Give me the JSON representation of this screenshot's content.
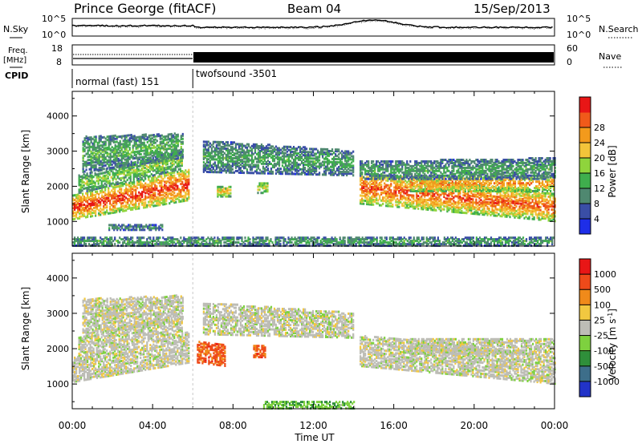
{
  "header": {
    "station": "Prince George (fitACF)",
    "beam": "Beam 04",
    "date": "15/Sep/2013"
  },
  "noise_panel": {
    "left_label": "N.Sky",
    "right_label": "N.Search",
    "left_ticks": [
      "10^5",
      "10^0"
    ],
    "right_ticks": [
      "10^5",
      "10^0"
    ]
  },
  "freq_panel": {
    "left_label_1": "Freq.",
    "left_label_2": "[MHz]",
    "right_label": "Nave",
    "left_ticks": [
      "18",
      "8"
    ],
    "right_ticks": [
      "60",
      "0"
    ]
  },
  "cpid": {
    "label": "CPID",
    "modes": [
      {
        "name": "normal (fast) 151",
        "start_h": 0,
        "end_h": 6
      },
      {
        "name": "twofsound -3501",
        "start_h": 6,
        "end_h": 24
      }
    ]
  },
  "x_axis": {
    "label": "Time UT",
    "ticks": [
      "00:00",
      "04:00",
      "08:00",
      "12:00",
      "16:00",
      "20:00",
      "00:00"
    ]
  },
  "chart_data": [
    {
      "type": "heatmap",
      "title": "",
      "xlabel": "Time UT",
      "ylabel": "Slant Range [km]",
      "xlim": [
        0,
        24
      ],
      "ylim": [
        300,
        4700
      ],
      "yticks": [
        "1000",
        "2000",
        "3000",
        "4000"
      ],
      "colorbar_label": "Power [dB]",
      "colorbar_ticks": [
        "4",
        "8",
        "12",
        "16",
        "20",
        "24",
        "28"
      ],
      "colorbar_colors": [
        "#1e2ee8",
        "#3a4ea6",
        "#4f8870",
        "#3fae4d",
        "#8fd43c",
        "#f3c43a",
        "#f39a1c",
        "#f05a1a",
        "#e81616"
      ],
      "regions": [
        {
          "t0": 0.0,
          "t1": 5.8,
          "r0a": 1050,
          "r1a": 1750,
          "r0b": 1600,
          "r1b": 2500,
          "level": 0.85
        },
        {
          "t0": 0.3,
          "t1": 5.5,
          "r0a": 1800,
          "r1a": 2300,
          "r0b": 2500,
          "r1b": 3000,
          "level": 0.45
        },
        {
          "t0": 0.5,
          "t1": 5.5,
          "r0a": 2400,
          "r1a": 3400,
          "r0b": 2800,
          "r1b": 3500,
          "level": 0.35
        },
        {
          "t0": 1.8,
          "t1": 4.5,
          "r0a": 750,
          "r1a": 900,
          "r0b": 750,
          "r1b": 900,
          "level": 0.25
        },
        {
          "t0": 6.5,
          "t1": 14.0,
          "r0a": 2400,
          "r1a": 3300,
          "r0b": 2300,
          "r1b": 3000,
          "level": 0.3
        },
        {
          "t0": 7.2,
          "t1": 7.9,
          "r0a": 1700,
          "r1a": 2000,
          "r0b": 1700,
          "r1b": 2000,
          "level": 0.6
        },
        {
          "t0": 9.2,
          "t1": 9.7,
          "r0a": 1800,
          "r1a": 2100,
          "r0b": 1800,
          "r1b": 2100,
          "level": 0.55
        },
        {
          "t0": 14.3,
          "t1": 24.0,
          "r0a": 1500,
          "r1a": 2400,
          "r0b": 1000,
          "r1b": 1800,
          "level": 0.8
        },
        {
          "t0": 16.8,
          "t1": 24.0,
          "r0a": 1850,
          "r1a": 2300,
          "r0b": 1850,
          "r1b": 2300,
          "level": 0.7
        },
        {
          "t0": 14.3,
          "t1": 24.0,
          "r0a": 2200,
          "r1a": 2700,
          "r0b": 2200,
          "r1b": 2800,
          "level": 0.3
        },
        {
          "t0": 0.0,
          "t1": 24.0,
          "r0a": 300,
          "r1a": 550,
          "r0b": 300,
          "r1b": 550,
          "level": 0.3
        }
      ]
    },
    {
      "type": "heatmap",
      "title": "",
      "xlabel": "Time UT",
      "ylabel": "Slant Range [km]",
      "xlim": [
        0,
        24
      ],
      "ylim": [
        300,
        4700
      ],
      "yticks": [
        "1000",
        "2000",
        "3000",
        "4000"
      ],
      "colorbar_label": "Velocity [m s^-1]",
      "colorbar_ticks": [
        "1000",
        "500",
        "100",
        "25",
        "-25",
        "-100",
        "-500",
        "-1000"
      ],
      "colorbar_colors": [
        "#2233c8",
        "#3d6e8a",
        "#2f8f3a",
        "#7ed13f",
        "#bdbdb6",
        "#f2c840",
        "#f08a1a",
        "#ee4a1a",
        "#e81616"
      ],
      "regions": [
        {
          "t0": 0.0,
          "t1": 5.8,
          "r0a": 1050,
          "r1a": 1750,
          "r0b": 1600,
          "r1b": 2500,
          "level": 0.5
        },
        {
          "t0": 0.3,
          "t1": 5.5,
          "r0a": 1800,
          "r1a": 2300,
          "r0b": 2500,
          "r1b": 3000,
          "level": 0.5
        },
        {
          "t0": 0.5,
          "t1": 5.5,
          "r0a": 2400,
          "r1a": 3400,
          "r0b": 2800,
          "r1b": 3500,
          "level": 0.5
        },
        {
          "t0": 6.5,
          "t1": 14.0,
          "r0a": 2400,
          "r1a": 3300,
          "r0b": 2300,
          "r1b": 3000,
          "level": 0.5
        },
        {
          "t0": 6.2,
          "t1": 7.6,
          "r0a": 1600,
          "r1a": 2200,
          "r0b": 1500,
          "r1b": 2100,
          "level": 0.85
        },
        {
          "t0": 9.0,
          "t1": 9.6,
          "r0a": 1750,
          "r1a": 2100,
          "r0b": 1750,
          "r1b": 2100,
          "level": 0.85
        },
        {
          "t0": 14.3,
          "t1": 24.0,
          "r0a": 1500,
          "r1a": 2400,
          "r0b": 1000,
          "r1b": 1800,
          "level": 0.5
        },
        {
          "t0": 16.8,
          "t1": 24.0,
          "r0a": 1850,
          "r1a": 2300,
          "r0b": 1850,
          "r1b": 2300,
          "level": 0.5
        },
        {
          "t0": 9.5,
          "t1": 14.0,
          "r0a": 300,
          "r1a": 500,
          "r0b": 300,
          "r1b": 500,
          "level": 0.35
        }
      ]
    }
  ]
}
